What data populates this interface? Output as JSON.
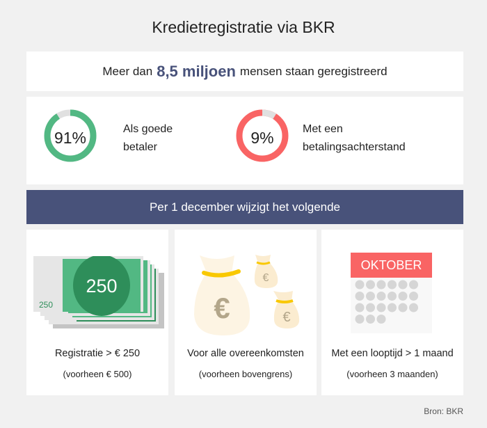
{
  "title": "Kredietregistratie via BKR",
  "summary": {
    "prefix": "Meer dan",
    "highlight": "8,5 miljoen",
    "suffix": "mensen staan geregistreerd"
  },
  "stats": [
    {
      "value": "91%",
      "fraction": 0.91,
      "label_line1": "Als goede",
      "label_line2": "betaler",
      "color": "#52b883"
    },
    {
      "value": "9%",
      "fraction": 0.09,
      "label_line1": "Met een",
      "label_line2": "betalingsachterstand",
      "color": "#f96464"
    }
  ],
  "banner": "Per 1 december wijzigt het volgende",
  "cards": [
    {
      "icon": "banknotes-icon",
      "note_value": "250",
      "caption": "Registratie > € 250",
      "sub": "(voorheen € 500)"
    },
    {
      "icon": "money-bags-icon",
      "symbol": "€",
      "caption": "Voor alle overeenkomsten",
      "sub": "(voorheen bovengrens)"
    },
    {
      "icon": "calendar-icon",
      "month": "OKTOBER",
      "caption": "Met een looptijd > 1 maand",
      "sub": "(voorheen 3 maanden)"
    }
  ],
  "source": "Bron: BKR",
  "colors": {
    "accent": "#48527a",
    "green": "#52b883",
    "red": "#f96464",
    "background": "#f1f1f1"
  }
}
